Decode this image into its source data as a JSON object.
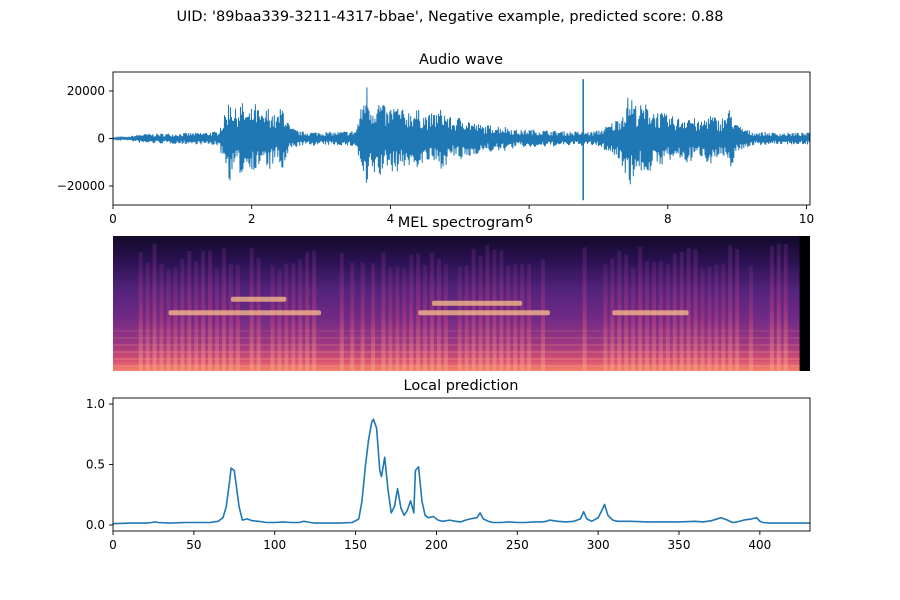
{
  "figure": {
    "suptitle": "UID: '89baa339-3211-4317-bbae', Negative example, predicted score: 0.88"
  },
  "colors": {
    "line": "#1f77b4",
    "axis": "#000000"
  },
  "chart_data": [
    {
      "type": "line",
      "title": "Audio wave",
      "xlim": [
        0,
        10.05
      ],
      "ylim": [
        -28000,
        28000
      ],
      "xticks": [
        0,
        2,
        4,
        6,
        8,
        10
      ],
      "yticks": [
        -20000,
        0,
        20000
      ],
      "ytick_labels": [
        "−20000",
        "0",
        "20000"
      ],
      "grid": false,
      "series": [
        {
          "envelope": [
            [
              0.0,
              300
            ],
            [
              0.2,
              700
            ],
            [
              0.4,
              2000
            ],
            [
              0.8,
              2200
            ],
            [
              1.2,
              2500
            ],
            [
              1.5,
              3000
            ],
            [
              1.6,
              9000
            ],
            [
              1.7,
              20000
            ],
            [
              1.75,
              12000
            ],
            [
              1.85,
              16000
            ],
            [
              1.95,
              11000
            ],
            [
              2.05,
              15000
            ],
            [
              2.15,
              10000
            ],
            [
              2.25,
              14000
            ],
            [
              2.35,
              9000
            ],
            [
              2.45,
              15000
            ],
            [
              2.55,
              5000
            ],
            [
              2.7,
              3000
            ],
            [
              3.2,
              2800
            ],
            [
              3.5,
              3500
            ],
            [
              3.6,
              16000
            ],
            [
              3.65,
              25000
            ],
            [
              3.72,
              15000
            ],
            [
              3.85,
              17000
            ],
            [
              3.95,
              12000
            ],
            [
              4.05,
              15000
            ],
            [
              4.2,
              12000
            ],
            [
              4.35,
              13000
            ],
            [
              4.55,
              10000
            ],
            [
              4.75,
              13000
            ],
            [
              4.9,
              8000
            ],
            [
              5.05,
              10000
            ],
            [
              5.2,
              7000
            ],
            [
              5.35,
              5500
            ],
            [
              5.5,
              6000
            ],
            [
              5.7,
              5000
            ],
            [
              5.85,
              3500
            ],
            [
              6.0,
              4000
            ],
            [
              6.3,
              3500
            ],
            [
              6.6,
              3000
            ],
            [
              6.78,
              3000
            ],
            [
              6.9,
              3000
            ],
            [
              7.0,
              3500
            ],
            [
              7.15,
              6000
            ],
            [
              7.25,
              8000
            ],
            [
              7.35,
              12000
            ],
            [
              7.45,
              20000
            ],
            [
              7.55,
              14000
            ],
            [
              7.7,
              15000
            ],
            [
              7.85,
              12000
            ],
            [
              8.0,
              10000
            ],
            [
              8.15,
              9000
            ],
            [
              8.3,
              11000
            ],
            [
              8.45,
              7000
            ],
            [
              8.6,
              11000
            ],
            [
              8.75,
              8000
            ],
            [
              8.9,
              13000
            ],
            [
              9.0,
              6000
            ],
            [
              9.2,
              3000
            ],
            [
              9.6,
              2500
            ],
            [
              10.05,
              2500
            ]
          ],
          "spike": {
            "x": 6.78,
            "top": 25000,
            "bottom": -26000
          }
        }
      ]
    },
    {
      "type": "heatmap",
      "title": "MEL spectrogram",
      "colormap": "magma",
      "vertical_bursts": [
        0.4,
        0.5,
        0.6,
        0.7,
        0.8,
        0.9,
        1.0,
        1.1,
        1.2,
        1.3,
        1.4,
        1.5,
        1.6,
        1.7,
        1.8,
        2.0,
        2.1,
        2.3,
        2.4,
        2.5,
        2.6,
        2.7,
        2.8,
        2.9,
        3.3,
        3.45,
        3.6,
        3.75,
        3.9,
        4.0,
        4.1,
        4.2,
        4.3,
        4.4,
        4.5,
        4.6,
        4.7,
        4.8,
        5.0,
        5.1,
        5.2,
        5.3,
        5.4,
        5.5,
        5.6,
        5.7,
        5.8,
        5.9,
        6.0,
        6.2,
        6.8,
        7.1,
        7.2,
        7.3,
        7.4,
        7.5,
        7.6,
        7.7,
        7.8,
        7.9,
        8.0,
        8.1,
        8.2,
        8.3,
        8.4,
        8.5,
        8.6,
        8.7,
        8.8,
        8.9,
        9.0,
        9.2,
        9.5,
        9.6,
        9.7
      ],
      "bright_bands": [
        {
          "x0": 0.8,
          "x1": 3.0,
          "y": 0.55
        },
        {
          "x0": 4.4,
          "x1": 6.3,
          "y": 0.55
        },
        {
          "x0": 7.2,
          "x1": 8.3,
          "y": 0.55
        },
        {
          "x0": 1.7,
          "x1": 2.5,
          "y": 0.45
        },
        {
          "x0": 4.6,
          "x1": 5.9,
          "y": 0.48
        }
      ],
      "silence_start": 9.9
    },
    {
      "type": "line",
      "title": "Local prediction",
      "xlim": [
        0,
        431
      ],
      "ylim": [
        -0.05,
        1.05
      ],
      "xticks": [
        0,
        50,
        100,
        150,
        200,
        250,
        300,
        350,
        400
      ],
      "yticks": [
        0.0,
        0.5,
        1.0
      ],
      "ytick_labels": [
        "0.0",
        "0.5",
        "1.0"
      ],
      "grid": false,
      "series": [
        {
          "x": [
            0,
            10,
            20,
            24,
            26,
            28,
            35,
            45,
            55,
            60,
            65,
            68,
            70,
            72,
            73,
            75,
            78,
            80,
            83,
            86,
            90,
            95,
            100,
            105,
            110,
            115,
            118,
            120,
            122,
            125,
            130,
            140,
            148,
            152,
            154,
            156,
            158,
            160,
            161,
            163,
            165,
            166,
            168,
            170,
            172,
            174,
            176,
            178,
            180,
            182,
            184,
            186,
            187,
            189,
            191,
            193,
            195,
            198,
            201,
            204,
            208,
            212,
            215,
            218,
            221,
            225,
            227,
            229,
            232,
            235,
            240,
            245,
            250,
            255,
            260,
            265,
            268,
            270,
            275,
            280,
            285,
            289,
            291,
            293,
            296,
            300,
            303,
            304,
            306,
            309,
            312,
            320,
            330,
            340,
            350,
            360,
            365,
            370,
            376,
            380,
            383,
            386,
            390,
            395,
            398,
            400,
            402,
            406,
            410,
            420,
            431
          ],
          "y": [
            0.01,
            0.015,
            0.015,
            0.02,
            0.025,
            0.02,
            0.015,
            0.02,
            0.02,
            0.02,
            0.03,
            0.06,
            0.15,
            0.35,
            0.47,
            0.45,
            0.15,
            0.04,
            0.05,
            0.035,
            0.03,
            0.02,
            0.02,
            0.025,
            0.02,
            0.02,
            0.03,
            0.025,
            0.02,
            0.015,
            0.015,
            0.015,
            0.02,
            0.05,
            0.2,
            0.48,
            0.7,
            0.85,
            0.875,
            0.8,
            0.45,
            0.4,
            0.56,
            0.3,
            0.1,
            0.15,
            0.3,
            0.14,
            0.08,
            0.12,
            0.2,
            0.1,
            0.45,
            0.48,
            0.2,
            0.08,
            0.06,
            0.07,
            0.04,
            0.03,
            0.04,
            0.03,
            0.025,
            0.04,
            0.05,
            0.06,
            0.1,
            0.05,
            0.03,
            0.02,
            0.02,
            0.025,
            0.02,
            0.02,
            0.025,
            0.025,
            0.03,
            0.04,
            0.03,
            0.025,
            0.03,
            0.05,
            0.11,
            0.05,
            0.03,
            0.06,
            0.14,
            0.17,
            0.08,
            0.04,
            0.03,
            0.03,
            0.025,
            0.025,
            0.025,
            0.03,
            0.025,
            0.035,
            0.06,
            0.04,
            0.02,
            0.025,
            0.04,
            0.05,
            0.06,
            0.03,
            0.02,
            0.015,
            0.015,
            0.015,
            0.015
          ]
        }
      ]
    }
  ]
}
